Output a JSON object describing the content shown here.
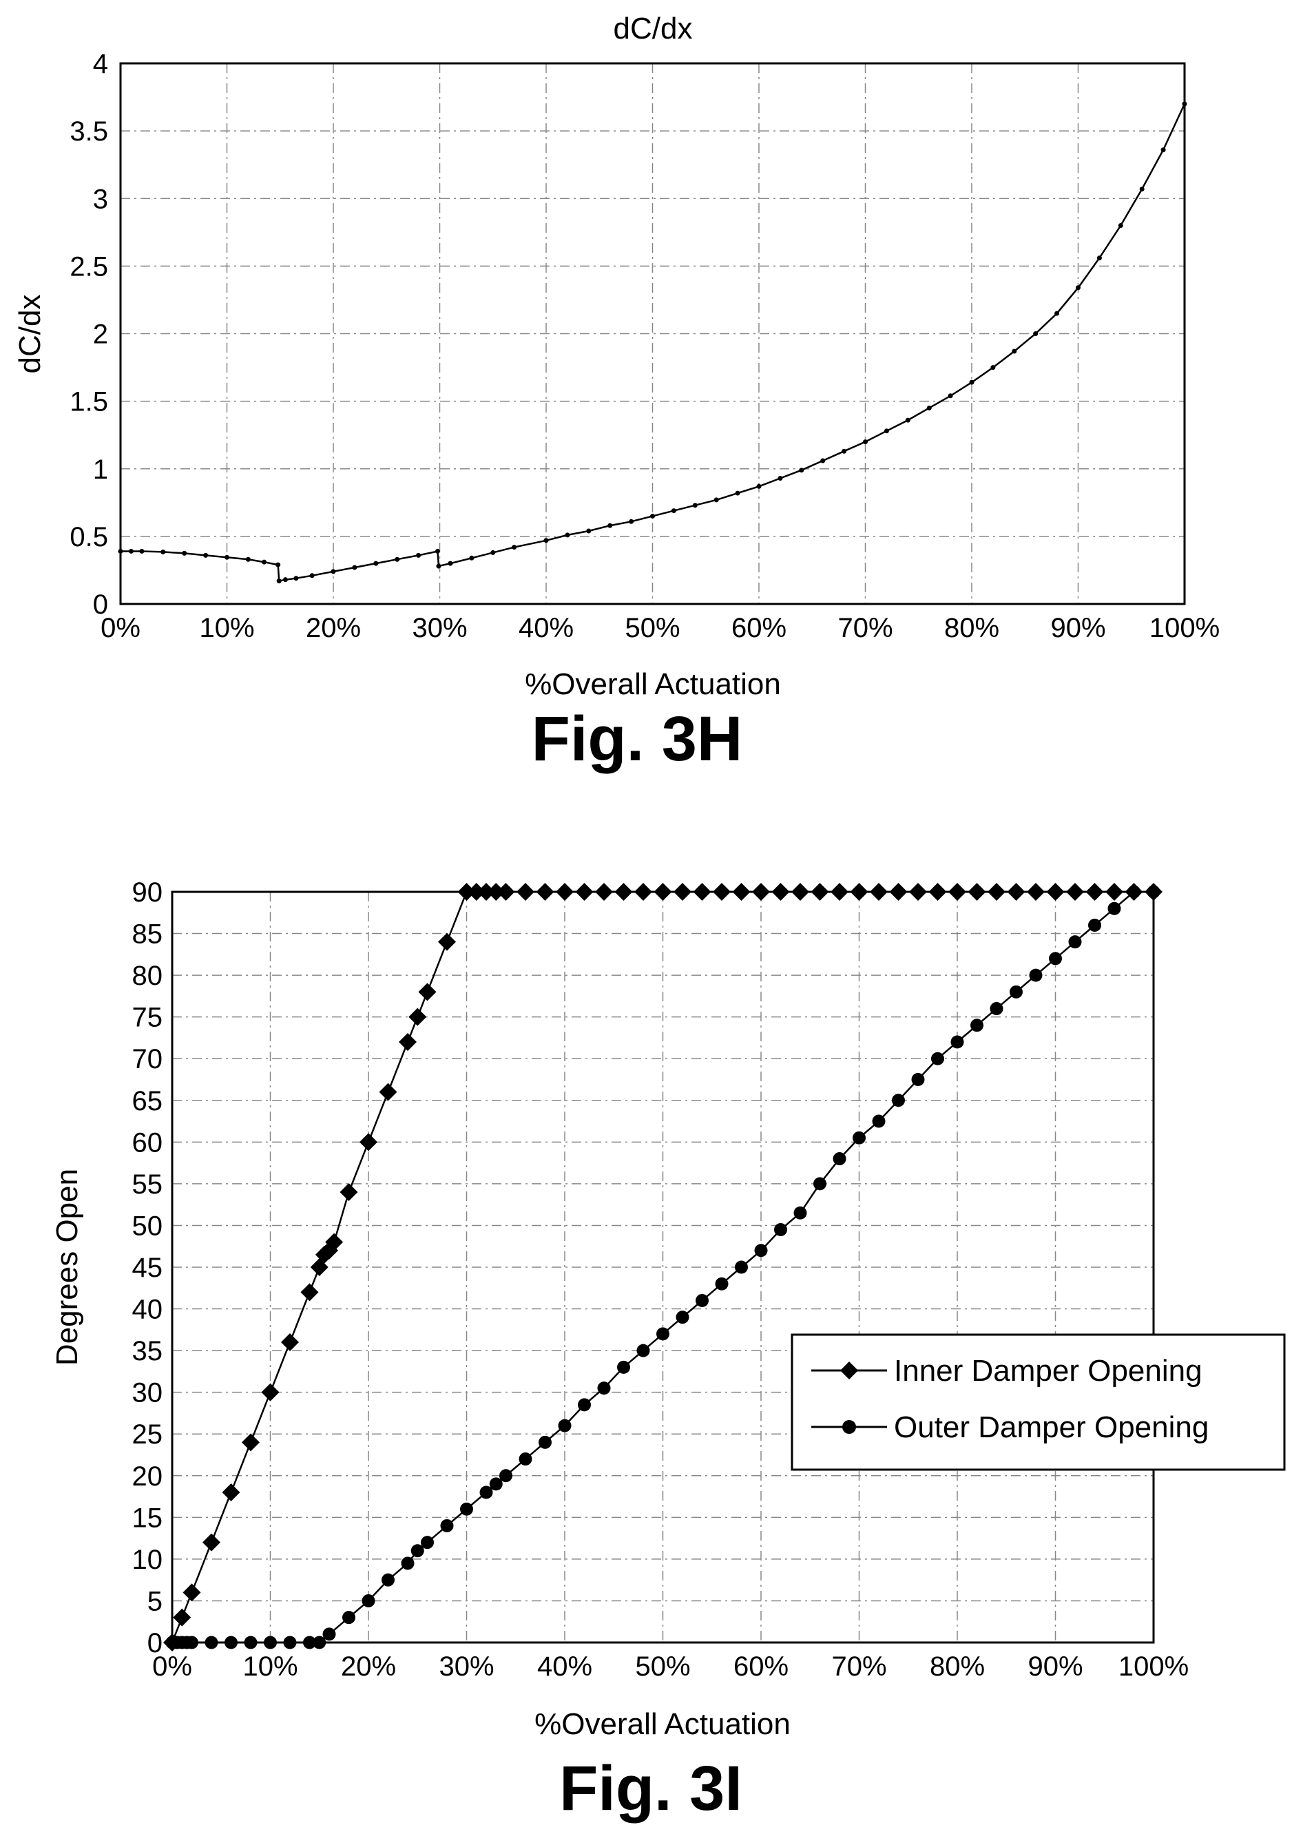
{
  "chart_data": [
    {
      "type": "line",
      "title": "dC/dx",
      "caption": "Fig. 3H",
      "xlabel": "%Overall Actuation",
      "ylabel": "dC/dx",
      "xlim": [
        0,
        100
      ],
      "ylim": [
        0,
        4
      ],
      "grid": true,
      "x_ticks": [
        "0%",
        "10%",
        "20%",
        "30%",
        "40%",
        "50%",
        "60%",
        "70%",
        "80%",
        "90%",
        "100%"
      ],
      "y_ticks": [
        "0",
        "0.5",
        "1",
        "1.5",
        "2",
        "2.5",
        "3",
        "3.5",
        "4"
      ],
      "series": [
        {
          "x": [
            0,
            1,
            2,
            4,
            6,
            8,
            10,
            12,
            13.5,
            14.8,
            14.9,
            15.5,
            16.5,
            18,
            20,
            22,
            24,
            26,
            28,
            29.8,
            29.9,
            31,
            33,
            35,
            37,
            40,
            42,
            44,
            46,
            48,
            50,
            52,
            54,
            56,
            58,
            60,
            62,
            64,
            66,
            68,
            70,
            72,
            74,
            76,
            78,
            80,
            82,
            84,
            86,
            88,
            90,
            92,
            94,
            96,
            98,
            100
          ],
          "y": [
            0.39,
            0.39,
            0.39,
            0.385,
            0.375,
            0.36,
            0.345,
            0.33,
            0.31,
            0.29,
            0.17,
            0.18,
            0.19,
            0.21,
            0.24,
            0.27,
            0.3,
            0.33,
            0.36,
            0.39,
            0.28,
            0.3,
            0.34,
            0.38,
            0.42,
            0.47,
            0.51,
            0.54,
            0.58,
            0.61,
            0.65,
            0.69,
            0.73,
            0.77,
            0.82,
            0.87,
            0.93,
            0.99,
            1.06,
            1.13,
            1.2,
            1.28,
            1.36,
            1.45,
            1.54,
            1.64,
            1.75,
            1.87,
            2.0,
            2.15,
            2.34,
            2.56,
            2.8,
            3.07,
            3.36,
            3.7
          ]
        }
      ]
    },
    {
      "type": "line",
      "title": "",
      "caption": "Fig. 3I",
      "xlabel": "%Overall Actuation",
      "ylabel": "Degrees Open",
      "xlim": [
        0,
        100
      ],
      "ylim": [
        0,
        90
      ],
      "grid": true,
      "legend_position": "right-middle",
      "x_ticks": [
        "0%",
        "10%",
        "20%",
        "30%",
        "40%",
        "50%",
        "60%",
        "70%",
        "80%",
        "90%",
        "100%"
      ],
      "y_ticks": [
        "0",
        "5",
        "10",
        "15",
        "20",
        "25",
        "30",
        "35",
        "40",
        "45",
        "50",
        "55",
        "60",
        "65",
        "70",
        "75",
        "80",
        "85",
        "90"
      ],
      "series": [
        {
          "name": "Inner Damper Opening",
          "marker": "diamond",
          "x": [
            0,
            1,
            2,
            4,
            6,
            8,
            10,
            12,
            14,
            15,
            15.5,
            16,
            16.5,
            18,
            20,
            22,
            24,
            25,
            26,
            28,
            30,
            31,
            32,
            33,
            34,
            36,
            38,
            40,
            42,
            44,
            46,
            48,
            50,
            52,
            54,
            56,
            58,
            60,
            62,
            64,
            66,
            68,
            70,
            72,
            74,
            76,
            78,
            80,
            82,
            84,
            86,
            88,
            90,
            92,
            94,
            96,
            98,
            100
          ],
          "y": [
            0,
            3,
            6,
            12,
            18,
            24,
            30,
            36,
            42,
            45,
            46.5,
            47,
            48,
            54,
            60,
            66,
            72,
            75,
            78,
            84,
            90,
            90,
            90,
            90,
            90,
            90,
            90,
            90,
            90,
            90,
            90,
            90,
            90,
            90,
            90,
            90,
            90,
            90,
            90,
            90,
            90,
            90,
            90,
            90,
            90,
            90,
            90,
            90,
            90,
            90,
            90,
            90,
            90,
            90,
            90,
            90,
            90,
            90
          ]
        },
        {
          "name": "Outer Damper Opening",
          "marker": "circle",
          "x": [
            0,
            0.5,
            1,
            1.5,
            2,
            4,
            6,
            8,
            10,
            12,
            14,
            15,
            16,
            18,
            20,
            22,
            24,
            25,
            26,
            28,
            30,
            32,
            33,
            34,
            36,
            38,
            40,
            42,
            44,
            46,
            48,
            50,
            52,
            54,
            56,
            58,
            60,
            62,
            64,
            66,
            68,
            70,
            72,
            74,
            76,
            78,
            80,
            82,
            84,
            86,
            88,
            90,
            92,
            94,
            96,
            98,
            100
          ],
          "y": [
            0,
            0,
            0,
            0,
            0,
            0,
            0,
            0,
            0,
            0,
            0,
            0,
            1,
            3,
            5,
            7.5,
            9.5,
            11,
            12,
            14,
            16,
            18,
            19,
            20,
            22,
            24,
            26,
            28.5,
            30.5,
            33,
            35,
            37,
            39,
            41,
            43,
            45,
            47,
            49.5,
            51.5,
            55,
            58,
            60.5,
            62.5,
            65,
            67.5,
            70,
            72,
            74,
            76,
            78,
            80,
            82,
            84,
            86,
            88,
            90,
            90
          ]
        }
      ]
    }
  ]
}
